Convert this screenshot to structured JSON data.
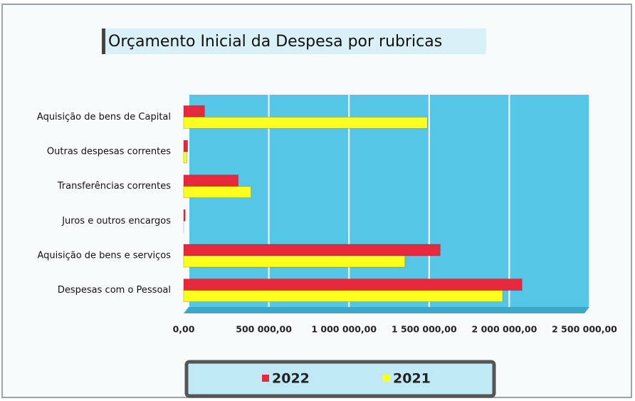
{
  "chart_data": {
    "type": "bar",
    "orientation": "horizontal",
    "title": "Orçamento Inicial da Despesa por rubricas",
    "categories": [
      "Aquisição de bens de Capital",
      "Outras despesas correntes",
      "Transferências correntes",
      "Juros e outros encargos",
      "Aquisição de bens e serviços",
      "Despesas com o Pessoal"
    ],
    "series": [
      {
        "name": "2022",
        "color": "#e8283c",
        "values": [
          130000,
          25000,
          340000,
          10000,
          1600000,
          2110000
        ]
      },
      {
        "name": "2021",
        "color": "#ffff1e",
        "values": [
          1520000,
          20000,
          420000,
          0,
          1380000,
          1990000
        ]
      }
    ],
    "xlim": [
      0,
      2500000
    ],
    "xticks": [
      {
        "value": 0,
        "label": "0,00"
      },
      {
        "value": 500000,
        "label": "500 000,00"
      },
      {
        "value": 1000000,
        "label": "1 000 000,00"
      },
      {
        "value": 1500000,
        "label": "1 500 000,00"
      },
      {
        "value": 2000000,
        "label": "2 000 000,00"
      },
      {
        "value": 2500000,
        "label": "2 500 000,00"
      }
    ],
    "grid": true,
    "legend": "bottom"
  }
}
